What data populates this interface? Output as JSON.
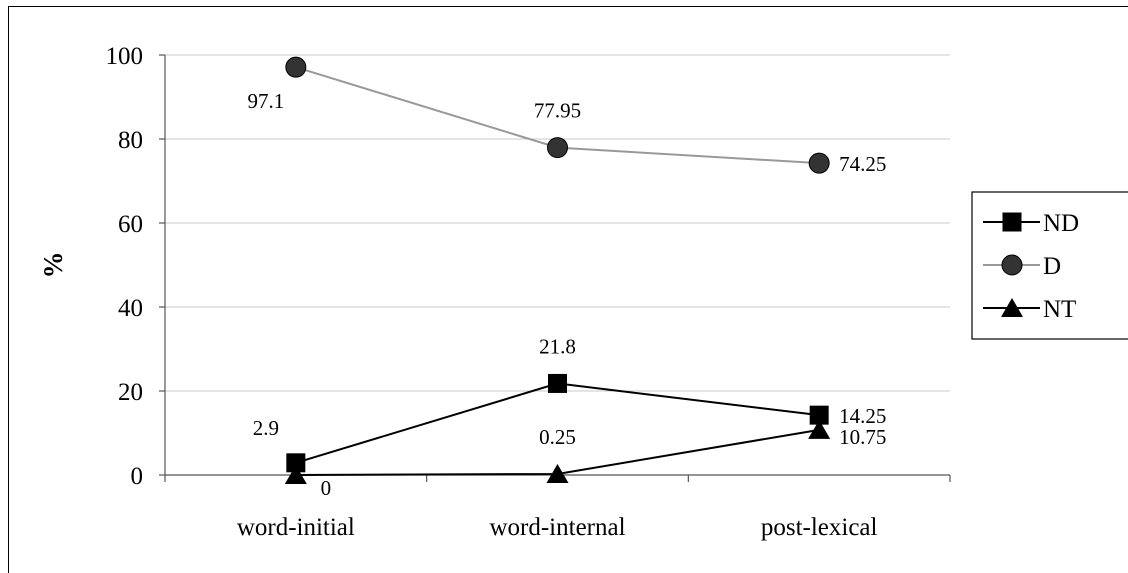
{
  "chart_data": {
    "type": "line",
    "title": "",
    "xlabel": "",
    "ylabel": "%",
    "categories": [
      "word-initial",
      "word-internal",
      "post-lexical"
    ],
    "ylim": [
      0,
      100
    ],
    "yticks": [
      0,
      20,
      40,
      60,
      80,
      100
    ],
    "grid": true,
    "legend_position": "right",
    "series": [
      {
        "name": "ND",
        "values": [
          2.9,
          21.8,
          14.25
        ],
        "labels": [
          "2.9",
          "21.8",
          "14.25"
        ],
        "marker": "square",
        "color": "#000000"
      },
      {
        "name": "D",
        "values": [
          97.1,
          77.95,
          74.25
        ],
        "labels": [
          "97.1",
          "77.95",
          "74.25"
        ],
        "marker": "circle",
        "color": "#999999"
      },
      {
        "name": "NT",
        "values": [
          0,
          0.25,
          10.75
        ],
        "labels": [
          "0",
          "0.25",
          "10.75"
        ],
        "marker": "triangle",
        "color": "#000000"
      }
    ]
  }
}
